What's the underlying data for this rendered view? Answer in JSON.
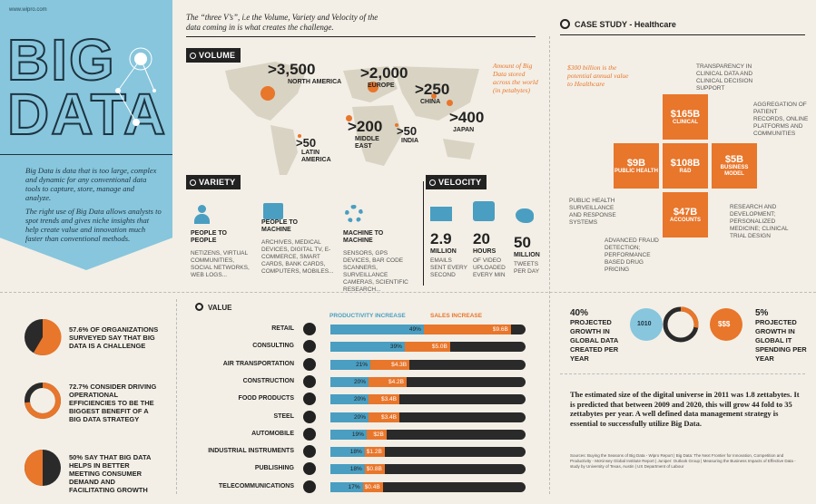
{
  "site": "www.wipro.com",
  "title": {
    "line1": "BIG",
    "line2": "DATA"
  },
  "intro": {
    "p1": "Big Data is data that is too large, complex and dynamic for any conventional data tools to capture, store, manage and analyze.",
    "p2": "The right use of Big Data allows analysts to spot trends and gives niche insights that help create value and innovation much faster than conventional methods."
  },
  "three_vs": "The “three V’s”, i.e the Volume, Variety and Velocity of the data coming in is what creates the challenge.",
  "volume": {
    "tag": "VOLUME",
    "note": "Amount of Big Data stored across the world (in petabytes)",
    "regions": [
      {
        "value": ">3,500",
        "name": "NORTH AMERICA"
      },
      {
        "value": ">2,000",
        "name": "EUROPE"
      },
      {
        "value": ">250",
        "name": "CHINA"
      },
      {
        "value": ">400",
        "name": "JAPAN"
      },
      {
        "value": ">200",
        "name": "MIDDLE EAST"
      },
      {
        "value": ">50",
        "name": "INDIA"
      },
      {
        "value": ">50",
        "name": "LATIN AMERICA"
      }
    ]
  },
  "variety": {
    "tag": "VARIETY",
    "items": [
      {
        "title": "PEOPLE TO PEOPLE",
        "desc": "NETIZENS, VIRTUAL COMMUNITIES, SOCIAL NETWORKS, WEB LOGS..."
      },
      {
        "title": "PEOPLE TO MACHINE",
        "desc": "ARCHIVES, MEDICAL DEVICES, DIGITAL TV, E-COMMERCE, SMART CARDS, BANK CARDS, COMPUTERS, MOBILES..."
      },
      {
        "title": "MACHINE TO MACHINE",
        "desc": "SENSORS, GPS DEVICES, BAR CODE SCANNERS, SURVEILLANCE CAMERAS, SCIENTIFIC RESEARCH..."
      }
    ]
  },
  "velocity": {
    "tag": "VELOCITY",
    "items": [
      {
        "value": "2.9",
        "unit": "MILLION",
        "desc": "EMAILS SENT EVERY SECOND"
      },
      {
        "value": "20",
        "unit": "HOURS",
        "desc": "OF VIDEO UPLOADED EVERY MIN"
      },
      {
        "value": "50",
        "unit": "MILLION",
        "desc": "TWEETS PER DAY"
      }
    ]
  },
  "case_study": {
    "tag": "CASE STUDY - Healthcare",
    "note": "$300 billion is the potential annual value to Healthcare",
    "boxes": [
      {
        "value": "$165B",
        "label": "CLINICAL"
      },
      {
        "value": "$9B",
        "label": "PUBLIC HEALTH"
      },
      {
        "value": "$108B",
        "label": "R&D"
      },
      {
        "value": "$5B",
        "label": "BUSINESS MODEL"
      },
      {
        "value": "$47B",
        "label": "ACCOUNTS"
      }
    ],
    "notes": {
      "tr": "TRANSPARENCY IN CLINICAL DATA AND CLINICAL DECISION SUPPORT",
      "r": "AGGREGATION OF PATIENT RECORDS, ONLINE PLATFORMS AND COMMUNITIES",
      "l": "PUBLIC HEALTH SURVEILLANCE AND RESPONSE SYSTEMS",
      "bl": "ADVANCED FRAUD DETECTION; PERFORMANCE BASED DRUG PRICING",
      "br": "RESEARCH AND DEVELOPMENT; PERSONALIZED MEDICINE; CLINICAL TRIAL DESIGN"
    }
  },
  "stats": [
    {
      "pct": "57.6%",
      "text": "57.6% OF ORGANIZATIONS SURVEYED SAY THAT BIG DATA IS A CHALLENGE"
    },
    {
      "pct": "72.7%",
      "text": "72.7% CONSIDER DRIVING OPERATIONAL EFFICIENCIES TO BE THE BIGGEST BENEFIT OF A BIG DATA STRATEGY"
    },
    {
      "pct": "50%",
      "text": "50% SAY THAT BIG DATA HELPS IN BETTER MEETING CONSUMER DEMAND AND FACILITATING GROWTH"
    }
  ],
  "value_chart": {
    "tag": "VALUE",
    "legend": {
      "productivity": "PRODUCTIVITY INCREASE",
      "sales": "SALES INCREASE"
    },
    "rows": [
      {
        "name": "RETAIL",
        "prod": "49%",
        "sales": "$9.6B",
        "p": 49,
        "s": 9.6
      },
      {
        "name": "CONSULTING",
        "prod": "39%",
        "sales": "$5.0B",
        "p": 39,
        "s": 5.0
      },
      {
        "name": "AIR TRANSPORTATION",
        "prod": "21%",
        "sales": "$4.3B",
        "p": 21,
        "s": 4.3
      },
      {
        "name": "CONSTRUCTION",
        "prod": "20%",
        "sales": "$4.2B",
        "p": 20,
        "s": 4.2
      },
      {
        "name": "FOOD PRODUCTS",
        "prod": "20%",
        "sales": "$3.4B",
        "p": 20,
        "s": 3.4
      },
      {
        "name": "STEEL",
        "prod": "20%",
        "sales": "$3.4B",
        "p": 20,
        "s": 3.4
      },
      {
        "name": "AUTOMOBILE",
        "prod": "19%",
        "sales": "$2B",
        "p": 19,
        "s": 2
      },
      {
        "name": "INDUSTRIAL INSTRUMENTS",
        "prod": "18%",
        "sales": "$1.2B",
        "p": 18,
        "s": 1.2
      },
      {
        "name": "PUBLISHING",
        "prod": "18%",
        "sales": "$0.8B",
        "p": 18,
        "s": 0.8
      },
      {
        "name": "TELECOMMUNICATIONS",
        "prod": "17%",
        "sales": "$0.4B",
        "p": 17,
        "s": 0.4
      }
    ]
  },
  "growth": {
    "left": {
      "pct": "40%",
      "text": "PROJECTED GROWTH IN GLOBAL DATA CREATED PER YEAR"
    },
    "right": {
      "pct": "5%",
      "text": "PROJECTED GROWTH IN GLOBAL IT SPENDING PER YEAR"
    },
    "circle_left": "1010",
    "circle_right": "$$$"
  },
  "universe": "The estimated size of the digital universe in 2011 was 1.8 zettabytes. It is predicted that between 2009 and 2020, this will grow 44 fold to 35 zettabytes per year. A well defined data management strategy is essential to successfully utilize Big Data.",
  "sources": "Sources: Buying the Seasons of Big Data - Wipro Report | Big Data: The Next Frontier for Innovation, Competition and Productivity - McKinsey Global Institute Report | Juniper: Outlook Group | Measuring the Business Impacts of Effective Data - study by University of Texas, Austin | US Department of Labour"
}
